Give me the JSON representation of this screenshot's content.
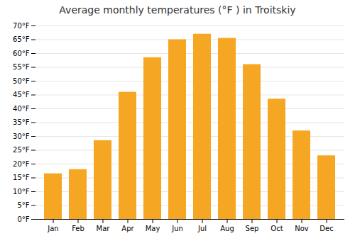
{
  "chart_data": {
    "type": "bar",
    "title": "Average monthly temperatures (°F ) in Troitskiy",
    "categories": [
      "Jan",
      "Feb",
      "Mar",
      "Apr",
      "May",
      "Jun",
      "Jul",
      "Aug",
      "Sep",
      "Oct",
      "Nov",
      "Dec"
    ],
    "values": [
      16.5,
      18,
      28.5,
      46,
      58.5,
      65,
      67,
      65.5,
      56,
      43.5,
      32,
      23
    ],
    "color": "#F5A623",
    "ylim": [
      0,
      70
    ],
    "yticks": [
      {
        "value": 0,
        "label": "0°F"
      },
      {
        "value": 5,
        "label": "5°F"
      },
      {
        "value": 10,
        "label": "10°F"
      },
      {
        "value": 15,
        "label": "15°F"
      },
      {
        "value": 20,
        "label": "20°F"
      },
      {
        "value": 25,
        "label": "25°F"
      },
      {
        "value": 30,
        "label": "30°F"
      },
      {
        "value": 35,
        "label": "35°F"
      },
      {
        "value": 40,
        "label": "40°F"
      },
      {
        "value": 45,
        "label": "45°F"
      },
      {
        "value": 50,
        "label": "50°F"
      },
      {
        "value": 55,
        "label": "55°F"
      },
      {
        "value": 60,
        "label": "60°F"
      },
      {
        "value": 65,
        "label": "65°F"
      },
      {
        "value": 70,
        "label": "70°F"
      }
    ],
    "grid": true
  }
}
